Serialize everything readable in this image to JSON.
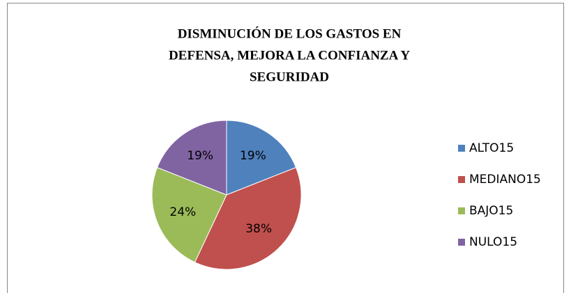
{
  "chart_data": {
    "type": "pie",
    "title": [
      "DISMINUCIÓN DE LOS GASTOS EN",
      "DEFENSA, MEJORA LA CONFIANZA Y",
      "SEGURIDAD"
    ],
    "categories": [
      "ALTO15",
      "MEDIANO15",
      "BAJO15",
      "NULO15"
    ],
    "values": [
      19,
      38,
      24,
      19
    ],
    "value_labels": [
      "19%",
      "38%",
      "24%",
      "19%"
    ],
    "colors": [
      "#4f81bd",
      "#c0504d",
      "#9bbb59",
      "#8064a2"
    ],
    "legend": "right"
  }
}
